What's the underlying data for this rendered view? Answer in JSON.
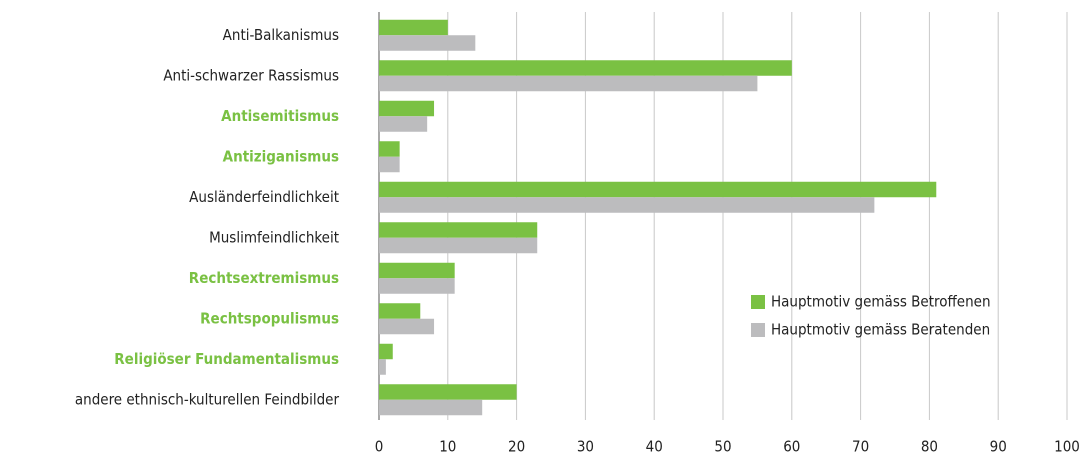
{
  "chart_data": {
    "type": "hbar",
    "categories": [
      "Anti-Balkanismus",
      "Anti-schwarzer Rassismus",
      "Antisemitismus",
      "Antiziganismus",
      "Ausländerfeindlichkeit",
      "Muslimfeindlichkeit",
      "Rechtsextremismus",
      "Rechtspopulismus",
      "Religiöser Fundamentalismus",
      "andere ethnisch-kulturellen Feindbilder"
    ],
    "category_highlight": [
      false,
      false,
      true,
      true,
      false,
      false,
      true,
      true,
      true,
      false
    ],
    "highlight_color": "#7ac143",
    "series": [
      {
        "name": "Hauptmotiv gemäss Betroffenen",
        "color": "#7ac143",
        "values": [
          10,
          60,
          8,
          3,
          81,
          23,
          11,
          6,
          2,
          20
        ]
      },
      {
        "name": "Hauptmotiv gemäss Beratenden",
        "color": "#bcbcbe",
        "values": [
          14,
          55,
          7,
          3,
          72,
          23,
          11,
          8,
          1,
          15
        ]
      }
    ],
    "xlim": [
      0,
      100
    ],
    "xticks": [
      0,
      10,
      20,
      30,
      40,
      50,
      60,
      70,
      80,
      90,
      100
    ],
    "grid": true,
    "legend_position": "center-right"
  }
}
